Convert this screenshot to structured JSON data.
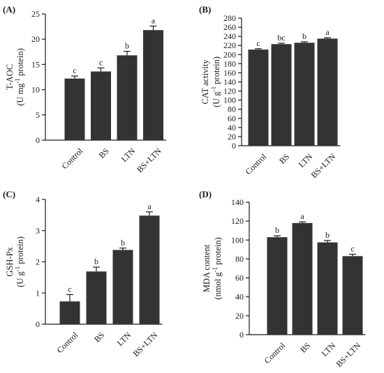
{
  "chart_data": [
    {
      "panel": "(A)",
      "type": "bar",
      "categories": [
        "Control",
        "BS",
        "LTN",
        "BS+LTN"
      ],
      "values": [
        12.2,
        13.6,
        16.8,
        21.8
      ],
      "errors": [
        0.5,
        0.7,
        0.8,
        0.8
      ],
      "significance": [
        "c",
        "c",
        "b",
        "a"
      ],
      "ylabel_line1": "T-AOC",
      "ylabel_line2": [
        "(U mg",
        "-1",
        " protein)"
      ],
      "ylim": [
        0,
        25
      ],
      "yticks": [
        0,
        5,
        10,
        15,
        20,
        25
      ],
      "bar_color": "#333333"
    },
    {
      "panel": "(B)",
      "type": "bar",
      "categories": [
        "Control",
        "BS",
        "LTN",
        "BS+LTN"
      ],
      "values": [
        211,
        223,
        226,
        235
      ],
      "errors": [
        2,
        2,
        2,
        2
      ],
      "significance": [
        "c",
        "bc",
        "b",
        "a"
      ],
      "ylabel_line1": "CAT activity",
      "ylabel_line2": [
        "(U g",
        "-1",
        " protein)"
      ],
      "ylim": [
        0,
        280
      ],
      "yticks": [
        0,
        20,
        40,
        60,
        80,
        100,
        120,
        140,
        160,
        180,
        200,
        220,
        240,
        260,
        280
      ],
      "bar_color": "#333333"
    },
    {
      "panel": "(C)",
      "type": "bar",
      "categories": [
        "Control",
        "BS",
        "LTN",
        "BS+LTN"
      ],
      "values": [
        0.73,
        1.69,
        2.38,
        3.48
      ],
      "errors": [
        0.22,
        0.14,
        0.06,
        0.12
      ],
      "significance": [
        "c",
        "b",
        "b",
        "a"
      ],
      "ylabel_line1": "GSH-Px",
      "ylabel_line2": [
        "(U g",
        "-1",
        " protein)"
      ],
      "ylim": [
        0,
        4
      ],
      "yticks": [
        0,
        1,
        2,
        3,
        4
      ],
      "bar_color": "#333333"
    },
    {
      "panel": "(D)",
      "type": "bar",
      "categories": [
        "Control",
        "BS",
        "LTN",
        "BS+LTN"
      ],
      "values": [
        103,
        118,
        97.5,
        83
      ],
      "errors": [
        1.5,
        1.2,
        2,
        2
      ],
      "significance": [
        "b",
        "a",
        "b",
        "c"
      ],
      "ylabel_line1": "MDA content",
      "ylabel_line2": [
        "(nmol g",
        "-1",
        " protein)"
      ],
      "ylim": [
        0,
        140
      ],
      "yticks": [
        0,
        20,
        40,
        60,
        80,
        100,
        120,
        140
      ],
      "bar_color": "#333333"
    }
  ]
}
